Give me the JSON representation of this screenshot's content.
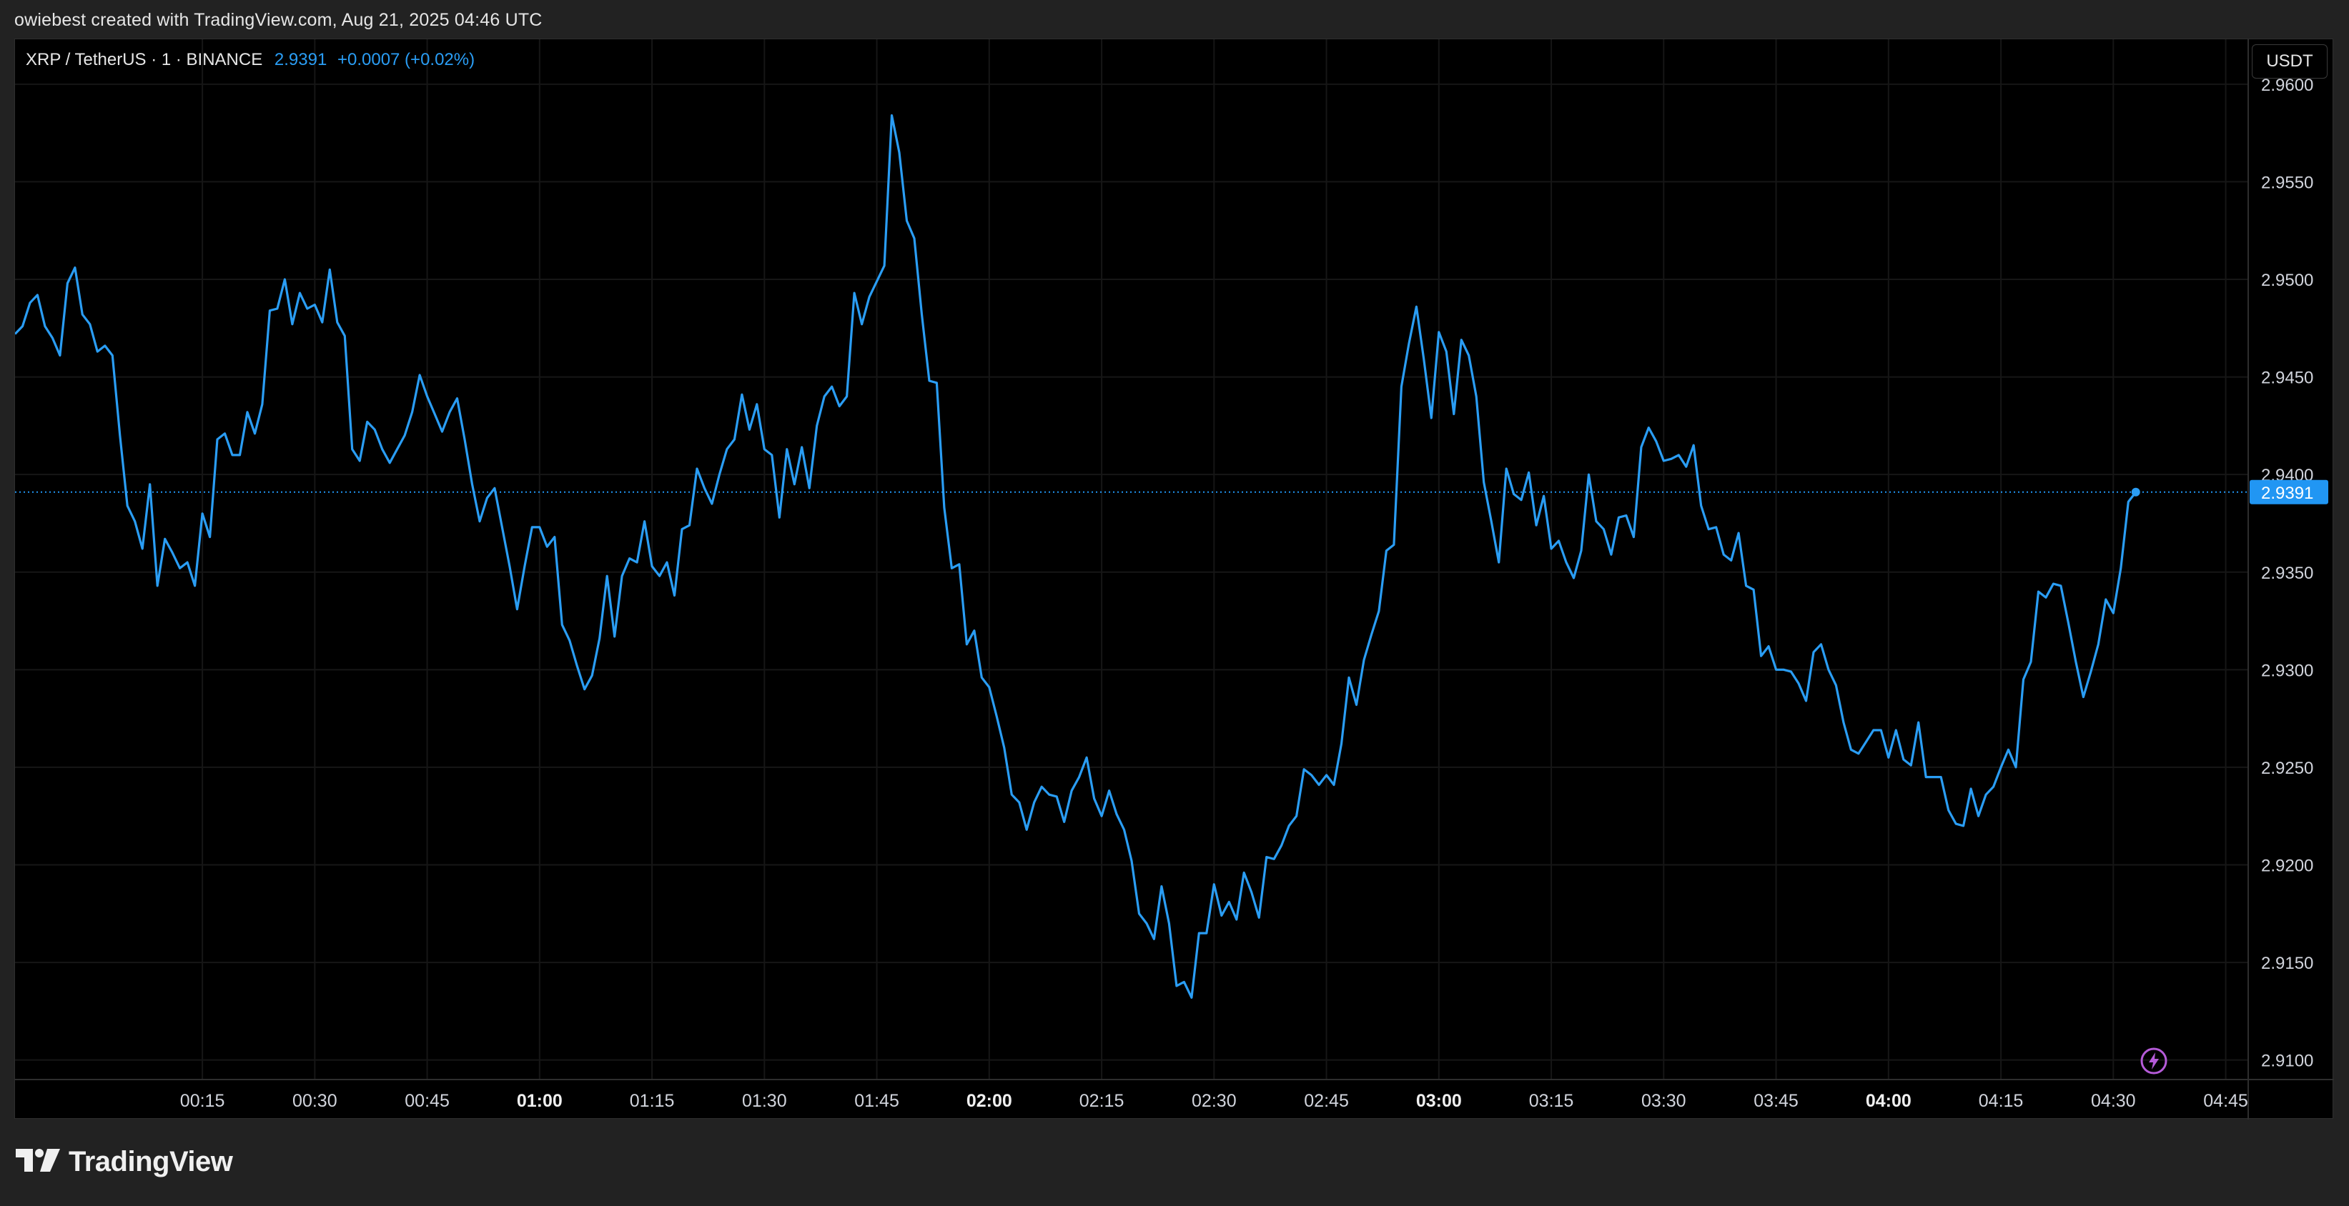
{
  "header": {
    "credit": "owiebest created with TradingView.com, Aug 21, 2025 04:46 UTC"
  },
  "legend": {
    "symbol": "XRP / TetherUS · 1 · BINANCE",
    "price": "2.9391",
    "change": "+0.0007 (+0.02%)"
  },
  "currency_label": "USDT",
  "footer": {
    "brand": "TradingView"
  },
  "colors": {
    "line": "#2a9df4",
    "price_tag": "#2196f3",
    "background": "#000000",
    "frame": "#222222",
    "bolt": "#b55bd8"
  },
  "icons": [
    "bolt-icon",
    "tradingview-logo-icon"
  ],
  "chart_data": {
    "type": "line",
    "title": "XRP / TetherUS · 1 · BINANCE",
    "xlabel": "",
    "ylabel": "",
    "x_unit": "minutes after 00:00 UTC",
    "ylim": [
      2.909,
      2.9623
    ],
    "xlim": [
      -10,
      288
    ],
    "y_ticks": [
      "2.9600",
      "2.9550",
      "2.9500",
      "2.9450",
      "2.9400",
      "2.9350",
      "2.9300",
      "2.9250",
      "2.9200",
      "2.9150",
      "2.9100"
    ],
    "x_ticks": [
      {
        "t": 15,
        "label": "00:15",
        "bold": false
      },
      {
        "t": 30,
        "label": "00:30",
        "bold": false
      },
      {
        "t": 45,
        "label": "00:45",
        "bold": false
      },
      {
        "t": 60,
        "label": "01:00",
        "bold": true
      },
      {
        "t": 75,
        "label": "01:15",
        "bold": false
      },
      {
        "t": 90,
        "label": "01:30",
        "bold": false
      },
      {
        "t": 105,
        "label": "01:45",
        "bold": false
      },
      {
        "t": 120,
        "label": "02:00",
        "bold": true
      },
      {
        "t": 135,
        "label": "02:15",
        "bold": false
      },
      {
        "t": 150,
        "label": "02:30",
        "bold": false
      },
      {
        "t": 165,
        "label": "02:45",
        "bold": false
      },
      {
        "t": 180,
        "label": "03:00",
        "bold": true
      },
      {
        "t": 195,
        "label": "03:15",
        "bold": false
      },
      {
        "t": 210,
        "label": "03:30",
        "bold": false
      },
      {
        "t": 225,
        "label": "03:45",
        "bold": false
      },
      {
        "t": 240,
        "label": "04:00",
        "bold": true
      },
      {
        "t": 255,
        "label": "04:15",
        "bold": false
      },
      {
        "t": 270,
        "label": "04:30",
        "bold": false
      },
      {
        "t": 285,
        "label": "04:45",
        "bold": false
      }
    ],
    "last_price": 2.9391,
    "last_price_label": "2.9391",
    "grid": true,
    "series": [
      {
        "values": [
          [
            -10,
            2.9472
          ],
          [
            -9,
            2.9476
          ],
          [
            -8,
            2.9488
          ],
          [
            -7,
            2.9492
          ],
          [
            -6,
            2.9476
          ],
          [
            -5,
            2.947
          ],
          [
            -4,
            2.9461
          ],
          [
            -3,
            2.9498
          ],
          [
            -2,
            2.9506
          ],
          [
            -1,
            2.9482
          ],
          [
            0,
            2.9477
          ],
          [
            1,
            2.9463
          ],
          [
            2,
            2.9466
          ],
          [
            3,
            2.9461
          ],
          [
            4,
            2.942
          ],
          [
            5,
            2.9384
          ],
          [
            6,
            2.9376
          ],
          [
            7,
            2.9362
          ],
          [
            8,
            2.9395
          ],
          [
            9,
            2.9343
          ],
          [
            10,
            2.9367
          ],
          [
            11,
            2.936
          ],
          [
            12,
            2.9352
          ],
          [
            13,
            2.9355
          ],
          [
            14,
            2.9343
          ],
          [
            15,
            2.938
          ],
          [
            16,
            2.9368
          ],
          [
            17,
            2.9418
          ],
          [
            18,
            2.9421
          ],
          [
            19,
            2.941
          ],
          [
            20,
            2.941
          ],
          [
            21,
            2.9432
          ],
          [
            22,
            2.9421
          ],
          [
            23,
            2.9436
          ],
          [
            24,
            2.9484
          ],
          [
            25,
            2.9485
          ],
          [
            26,
            2.95
          ],
          [
            27,
            2.9477
          ],
          [
            28,
            2.9493
          ],
          [
            29,
            2.9485
          ],
          [
            30,
            2.9487
          ],
          [
            31,
            2.9478
          ],
          [
            32,
            2.9505
          ],
          [
            33,
            2.9478
          ],
          [
            34,
            2.9471
          ],
          [
            35,
            2.9413
          ],
          [
            36,
            2.9407
          ],
          [
            37,
            2.9427
          ],
          [
            38,
            2.9423
          ],
          [
            39,
            2.9413
          ],
          [
            40,
            2.9406
          ],
          [
            41,
            2.9413
          ],
          [
            42,
            2.942
          ],
          [
            43,
            2.9432
          ],
          [
            44,
            2.9451
          ],
          [
            45,
            2.944
          ],
          [
            46,
            2.9431
          ],
          [
            47,
            2.9422
          ],
          [
            48,
            2.9432
          ],
          [
            49,
            2.9439
          ],
          [
            50,
            2.9418
          ],
          [
            51,
            2.9395
          ],
          [
            52,
            2.9376
          ],
          [
            53,
            2.9388
          ],
          [
            54,
            2.9393
          ],
          [
            55,
            2.9373
          ],
          [
            56,
            2.9353
          ],
          [
            57,
            2.9331
          ],
          [
            58,
            2.9353
          ],
          [
            59,
            2.9373
          ],
          [
            60,
            2.9373
          ],
          [
            61,
            2.9363
          ],
          [
            62,
            2.9368
          ],
          [
            63,
            2.9323
          ],
          [
            64,
            2.9315
          ],
          [
            65,
            2.9302
          ],
          [
            66,
            2.929
          ],
          [
            67,
            2.9297
          ],
          [
            68,
            2.9316
          ],
          [
            69,
            2.9348
          ],
          [
            70,
            2.9317
          ],
          [
            71,
            2.9348
          ],
          [
            72,
            2.9357
          ],
          [
            73,
            2.9355
          ],
          [
            74,
            2.9376
          ],
          [
            75,
            2.9353
          ],
          [
            76,
            2.9348
          ],
          [
            77,
            2.9355
          ],
          [
            78,
            2.9338
          ],
          [
            79,
            2.9372
          ],
          [
            80,
            2.9374
          ],
          [
            81,
            2.9403
          ],
          [
            82,
            2.9393
          ],
          [
            83,
            2.9385
          ],
          [
            84,
            2.94
          ],
          [
            85,
            2.9413
          ],
          [
            86,
            2.9418
          ],
          [
            87,
            2.9441
          ],
          [
            88,
            2.9423
          ],
          [
            89,
            2.9436
          ],
          [
            90,
            2.9413
          ],
          [
            91,
            2.941
          ],
          [
            92,
            2.9378
          ],
          [
            93,
            2.9413
          ],
          [
            94,
            2.9395
          ],
          [
            95,
            2.9414
          ],
          [
            96,
            2.9393
          ],
          [
            97,
            2.9425
          ],
          [
            98,
            2.944
          ],
          [
            99,
            2.9445
          ],
          [
            100,
            2.9435
          ],
          [
            101,
            2.944
          ],
          [
            102,
            2.9493
          ],
          [
            103,
            2.9477
          ],
          [
            104,
            2.9491
          ],
          [
            105,
            2.9499
          ],
          [
            106,
            2.9507
          ],
          [
            107,
            2.9584
          ],
          [
            108,
            2.9565
          ],
          [
            109,
            2.953
          ],
          [
            110,
            2.9521
          ],
          [
            111,
            2.9482
          ],
          [
            112,
            2.9448
          ],
          [
            113,
            2.9447
          ],
          [
            114,
            2.9383
          ],
          [
            115,
            2.9352
          ],
          [
            116,
            2.9354
          ],
          [
            117,
            2.9313
          ],
          [
            118,
            2.932
          ],
          [
            119,
            2.9296
          ],
          [
            120,
            2.9291
          ],
          [
            121,
            2.9276
          ],
          [
            122,
            2.926
          ],
          [
            123,
            2.9236
          ],
          [
            124,
            2.9232
          ],
          [
            125,
            2.9218
          ],
          [
            126,
            2.9232
          ],
          [
            127,
            2.924
          ],
          [
            128,
            2.9236
          ],
          [
            129,
            2.9235
          ],
          [
            130,
            2.9222
          ],
          [
            131,
            2.9238
          ],
          [
            132,
            2.9245
          ],
          [
            133,
            2.9255
          ],
          [
            134,
            2.9234
          ],
          [
            135,
            2.9225
          ],
          [
            136,
            2.9238
          ],
          [
            137,
            2.9226
          ],
          [
            138,
            2.9218
          ],
          [
            139,
            2.9202
          ],
          [
            140,
            2.9175
          ],
          [
            141,
            2.917
          ],
          [
            142,
            2.9162
          ],
          [
            143,
            2.9189
          ],
          [
            144,
            2.917
          ],
          [
            145,
            2.9138
          ],
          [
            146,
            2.914
          ],
          [
            147,
            2.9132
          ],
          [
            148,
            2.9165
          ],
          [
            149,
            2.9165
          ],
          [
            150,
            2.919
          ],
          [
            151,
            2.9174
          ],
          [
            152,
            2.9181
          ],
          [
            153,
            2.9172
          ],
          [
            154,
            2.9196
          ],
          [
            155,
            2.9186
          ],
          [
            156,
            2.9173
          ],
          [
            157,
            2.9204
          ],
          [
            158,
            2.9203
          ],
          [
            159,
            2.921
          ],
          [
            160,
            2.922
          ],
          [
            161,
            2.9225
          ],
          [
            162,
            2.9249
          ],
          [
            163,
            2.9246
          ],
          [
            164,
            2.9241
          ],
          [
            165,
            2.9246
          ],
          [
            166,
            2.9241
          ],
          [
            167,
            2.9262
          ],
          [
            168,
            2.9296
          ],
          [
            169,
            2.9282
          ],
          [
            170,
            2.9305
          ],
          [
            171,
            2.9318
          ],
          [
            172,
            2.933
          ],
          [
            173,
            2.9361
          ],
          [
            174,
            2.9364
          ],
          [
            175,
            2.9445
          ],
          [
            176,
            2.9467
          ],
          [
            177,
            2.9486
          ],
          [
            178,
            2.9459
          ],
          [
            179,
            2.9429
          ],
          [
            180,
            2.9473
          ],
          [
            181,
            2.9463
          ],
          [
            182,
            2.9431
          ],
          [
            183,
            2.9469
          ],
          [
            184,
            2.9461
          ],
          [
            185,
            2.944
          ],
          [
            186,
            2.9396
          ],
          [
            187,
            2.9376
          ],
          [
            188,
            2.9355
          ],
          [
            189,
            2.9403
          ],
          [
            190,
            2.939
          ],
          [
            191,
            2.9387
          ],
          [
            192,
            2.9401
          ],
          [
            193,
            2.9374
          ],
          [
            194,
            2.9389
          ],
          [
            195,
            2.9362
          ],
          [
            196,
            2.9366
          ],
          [
            197,
            2.9355
          ],
          [
            198,
            2.9347
          ],
          [
            199,
            2.9361
          ],
          [
            200,
            2.94
          ],
          [
            201,
            2.9376
          ],
          [
            202,
            2.9372
          ],
          [
            203,
            2.9359
          ],
          [
            204,
            2.9378
          ],
          [
            205,
            2.9379
          ],
          [
            206,
            2.9368
          ],
          [
            207,
            2.9414
          ],
          [
            208,
            2.9424
          ],
          [
            209,
            2.9417
          ],
          [
            210,
            2.9407
          ],
          [
            211,
            2.9408
          ],
          [
            212,
            2.941
          ],
          [
            213,
            2.9404
          ],
          [
            214,
            2.9415
          ],
          [
            215,
            2.9384
          ],
          [
            216,
            2.9372
          ],
          [
            217,
            2.9373
          ],
          [
            218,
            2.9359
          ],
          [
            219,
            2.9356
          ],
          [
            220,
            2.937
          ],
          [
            221,
            2.9343
          ],
          [
            222,
            2.9341
          ],
          [
            223,
            2.9307
          ],
          [
            224,
            2.9312
          ],
          [
            225,
            2.93
          ],
          [
            226,
            2.93
          ],
          [
            227,
            2.9299
          ],
          [
            228,
            2.9293
          ],
          [
            229,
            2.9284
          ],
          [
            230,
            2.9309
          ],
          [
            231,
            2.9313
          ],
          [
            232,
            2.93
          ],
          [
            233,
            2.9292
          ],
          [
            234,
            2.9273
          ],
          [
            235,
            2.9259
          ],
          [
            236,
            2.9257
          ],
          [
            237,
            2.9263
          ],
          [
            238,
            2.9269
          ],
          [
            239,
            2.9269
          ],
          [
            240,
            2.9255
          ],
          [
            241,
            2.9269
          ],
          [
            242,
            2.9254
          ],
          [
            243,
            2.9251
          ],
          [
            244,
            2.9273
          ],
          [
            245,
            2.9245
          ],
          [
            246,
            2.9245
          ],
          [
            247,
            2.9245
          ],
          [
            248,
            2.9228
          ],
          [
            249,
            2.9221
          ],
          [
            250,
            2.922
          ],
          [
            251,
            2.9239
          ],
          [
            252,
            2.9225
          ],
          [
            253,
            2.9236
          ],
          [
            254,
            2.924
          ],
          [
            255,
            2.925
          ],
          [
            256,
            2.9259
          ],
          [
            257,
            2.925
          ],
          [
            258,
            2.9295
          ],
          [
            259,
            2.9304
          ],
          [
            260,
            2.934
          ],
          [
            261,
            2.9337
          ],
          [
            262,
            2.9344
          ],
          [
            263,
            2.9343
          ],
          [
            264,
            2.9324
          ],
          [
            265,
            2.9304
          ],
          [
            266,
            2.9286
          ],
          [
            267,
            2.9299
          ],
          [
            268,
            2.9313
          ],
          [
            269,
            2.9336
          ],
          [
            270,
            2.9329
          ],
          [
            271,
            2.9352
          ],
          [
            272,
            2.9386
          ],
          [
            273,
            2.9391
          ]
        ]
      }
    ]
  }
}
